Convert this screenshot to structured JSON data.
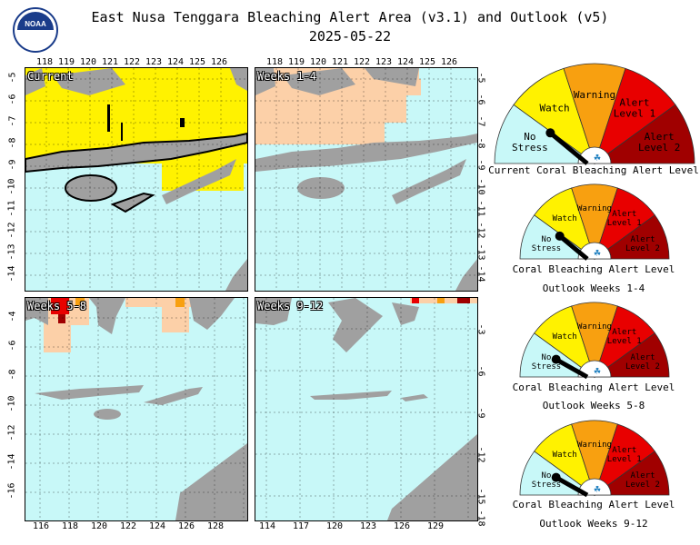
{
  "header": {
    "title_line1": "East Nusa Tenggara Bleaching Alert Area (v3.1) and Outlook (v5)",
    "title_line2": "2025-05-22",
    "logo_text": "NOAA"
  },
  "panels": [
    {
      "label": "Current",
      "top_lon": [
        "118",
        "119",
        "120",
        "121",
        "122",
        "123",
        "124",
        "125",
        "126"
      ],
      "right_lat": [
        "-5",
        "-6",
        "-7",
        "-8",
        "-9",
        "-10",
        "-11",
        "-12",
        "-13",
        "-14"
      ]
    },
    {
      "label": "Weeks 1-4",
      "top_lon": [
        "118",
        "119",
        "120",
        "121",
        "122",
        "123",
        "124",
        "125",
        "126"
      ],
      "right_lat": [
        "-5",
        "-6",
        "-7",
        "-8",
        "-9",
        "-10",
        "-11",
        "-12",
        "-13",
        "-14"
      ]
    },
    {
      "label": "Weeks 5-8",
      "bottom_lon": [
        "116",
        "118",
        "120",
        "122",
        "124",
        "126",
        "128"
      ],
      "left_lat": [
        "-4",
        "-6",
        "-8",
        "-10",
        "-12",
        "-14",
        "-16"
      ]
    },
    {
      "label": "Weeks 9-12",
      "bottom_lon": [
        "114",
        "117",
        "120",
        "123",
        "126",
        "129"
      ],
      "right_lat": [
        "-3",
        "-6",
        "-9",
        "-12",
        "-15",
        "-18"
      ]
    }
  ],
  "gauges": [
    {
      "caption_line1": "Current Coral Bleaching Alert Level",
      "caption_line2": "",
      "level": "Watch"
    },
    {
      "caption_line1": "Coral Bleaching Alert Level",
      "caption_line2": "Outlook Weeks 1-4",
      "level": "Watch"
    },
    {
      "caption_line1": "Coral Bleaching Alert Level",
      "caption_line2": "Outlook Weeks 5-8",
      "level": "No Stress"
    },
    {
      "caption_line1": "Coral Bleaching Alert Level",
      "caption_line2": "Outlook Weeks 9-12",
      "level": "No Stress"
    }
  ],
  "gauge_labels": {
    "no_stress": [
      "No",
      "Stress"
    ],
    "watch": "Watch",
    "warning": "Warning",
    "alert1": [
      "Alert",
      "Level 1"
    ],
    "alert2": [
      "Alert",
      "Level 2"
    ]
  },
  "colors": {
    "ocean": "#c8f8f8",
    "land": "#a0a0a0",
    "no_stress": "#c8f8f8",
    "watch": "#fff200",
    "warning": "#f8a010",
    "alert1": "#e80000",
    "alert2": "#a00000",
    "outlook_watch": "#fcd0a8",
    "outlook_warning": "#f8a010"
  }
}
